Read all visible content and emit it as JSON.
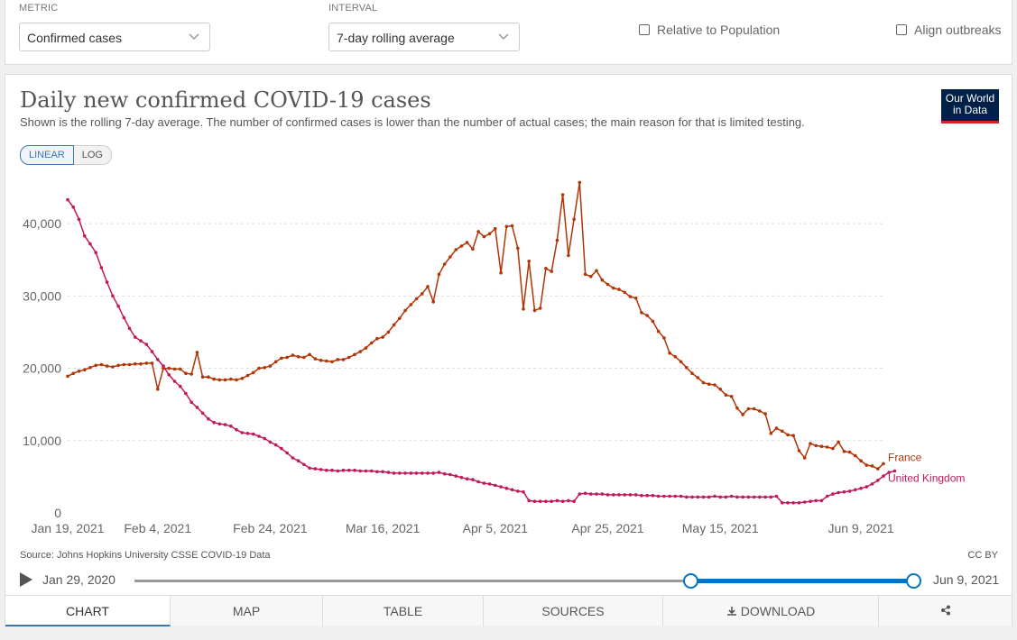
{
  "controls": {
    "metric_label": "METRIC",
    "metric_value": "Confirmed cases",
    "interval_label": "INTERVAL",
    "interval_value": "7-day rolling average",
    "relative_label": "Relative to Population",
    "align_label": "Align outbreaks"
  },
  "header": {
    "title": "Daily new confirmed COVID-19 cases",
    "subtitle": "Shown is the rolling 7-day average. The number of confirmed cases is lower than the number of actual cases; the main reason for that is limited testing.",
    "logo_line1": "Our World",
    "logo_line2": "in Data"
  },
  "scale": {
    "linear": "LINEAR",
    "log": "LOG",
    "active": "linear"
  },
  "chart_data": {
    "type": "line",
    "ylim": [
      0,
      45000
    ],
    "yticks": [
      0,
      10000,
      20000,
      30000,
      40000
    ],
    "ytick_labels": [
      "0",
      "10,000",
      "20,000",
      "30,000",
      "40,000"
    ],
    "xtick_labels": [
      "Jan 19, 2021",
      "Feb 4, 2021",
      "Feb 24, 2021",
      "Mar 16, 2021",
      "Apr 5, 2021",
      "Apr 25, 2021",
      "May 15, 2021",
      "Jun 9, 2021"
    ],
    "xtick_days": [
      0,
      16,
      36,
      56,
      76,
      96,
      116,
      141
    ],
    "x_start": "Jan 19, 2021",
    "x_end": "Jun 9, 2021",
    "grid": true,
    "series": [
      {
        "name": "France",
        "color": "#b13507",
        "values": [
          18900,
          19300,
          19600,
          19800,
          20100,
          20400,
          20500,
          20300,
          20200,
          20400,
          20500,
          20500,
          20600,
          20600,
          20700,
          20700,
          17100,
          20000,
          20000,
          19900,
          19900,
          19300,
          19200,
          22200,
          18800,
          18800,
          18500,
          18400,
          18400,
          18500,
          18400,
          18600,
          19000,
          19400,
          20000,
          20100,
          20300,
          20900,
          21400,
          21500,
          21800,
          21600,
          21500,
          21900,
          21300,
          21100,
          21000,
          20900,
          21200,
          21200,
          21500,
          21900,
          22300,
          22800,
          23500,
          24100,
          24300,
          25000,
          26000,
          26900,
          28000,
          28800,
          29600,
          30300,
          31300,
          29200,
          33000,
          34400,
          35400,
          36400,
          36900,
          37400,
          36500,
          38900,
          38200,
          38600,
          39300,
          33200,
          39600,
          39700,
          36600,
          28200,
          34800,
          28000,
          28300,
          33800,
          33400,
          37700,
          44000,
          35600,
          40600,
          45700,
          33000,
          32700,
          33500,
          32200,
          31600,
          31100,
          30900,
          30500,
          29900,
          29700,
          27700,
          27300,
          26500,
          25100,
          24200,
          22100,
          21600,
          20900,
          20100,
          19300,
          18700,
          18000,
          17800,
          17700,
          17100,
          16300,
          16100,
          14500,
          13600,
          14400,
          14400,
          14100,
          13700,
          11000,
          11700,
          11300,
          10800,
          10700,
          8600,
          7600,
          9600,
          9300,
          9200,
          9100,
          8900,
          9800,
          8500,
          8400,
          7900,
          7200,
          6600,
          6500,
          6100,
          6800
        ]
      },
      {
        "name": "United Kingdom",
        "color": "#c2185b",
        "values": [
          43300,
          42300,
          40600,
          38300,
          37200,
          36000,
          33900,
          31900,
          30000,
          28600,
          27000,
          25500,
          24300,
          23800,
          23300,
          22300,
          21200,
          20300,
          19100,
          18200,
          17500,
          16500,
          15300,
          14600,
          13800,
          13000,
          12500,
          12300,
          12200,
          12000,
          11500,
          11100,
          11000,
          10900,
          10600,
          10300,
          9800,
          9400,
          8900,
          8300,
          7600,
          7200,
          6700,
          6200,
          6100,
          6000,
          5900,
          5900,
          5800,
          5900,
          5900,
          5900,
          5800,
          5800,
          5800,
          5700,
          5700,
          5600,
          5500,
          5500,
          5500,
          5500,
          5500,
          5500,
          5500,
          5500,
          5600,
          5400,
          5300,
          5100,
          4900,
          4700,
          4600,
          4300,
          4100,
          4000,
          3800,
          3600,
          3400,
          3200,
          3000,
          2900,
          1700,
          1600,
          1600,
          1600,
          1600,
          1700,
          1600,
          1700,
          1600,
          2600,
          2700,
          2600,
          2600,
          2600,
          2500,
          2500,
          2500,
          2500,
          2500,
          2500,
          2400,
          2400,
          2400,
          2300,
          2300,
          2300,
          2300,
          2300,
          2200,
          2200,
          2200,
          2200,
          2200,
          2300,
          2200,
          2200,
          2300,
          2200,
          2200,
          2200,
          2200,
          2200,
          2200,
          2200,
          2300,
          1400,
          1400,
          1400,
          1400,
          1500,
          1600,
          1700,
          1700,
          2300,
          2600,
          2800,
          2900,
          3000,
          3200,
          3400,
          3600,
          4000,
          4500,
          5100,
          5600,
          5800
        ]
      }
    ]
  },
  "source": "Source: Johns Hopkins University CSSE COVID-19 Data",
  "license": "CC BY",
  "timeline": {
    "start": "Jan 29, 2020",
    "end": "Jun 9, 2021"
  },
  "tabs": {
    "chart": "CHART",
    "map": "MAP",
    "table": "TABLE",
    "sources": "SOURCES",
    "download": "DOWNLOAD"
  }
}
